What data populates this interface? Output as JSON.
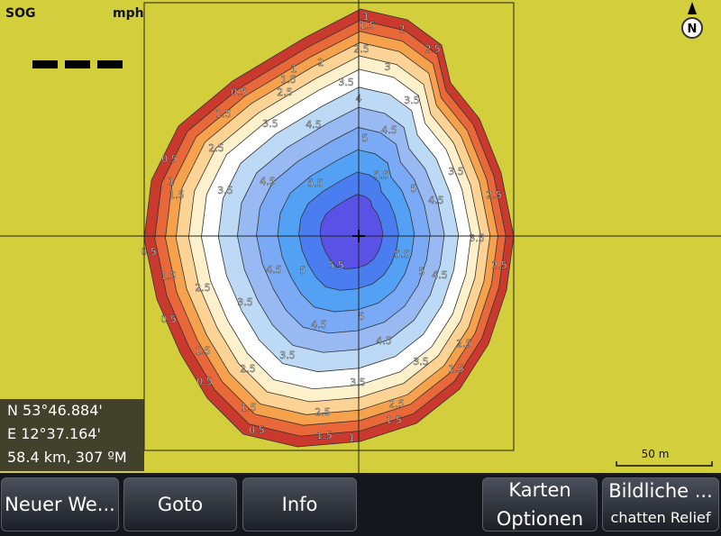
{
  "sog_label": "SOG",
  "sog_unit": "mph",
  "compass": "N",
  "scale": "50 m",
  "position": {
    "lat": "N  53°46.884'",
    "lon": "E  12°37.164'",
    "range": "58.4 km, 307 ºM"
  },
  "buttons": [
    "Neuer We...",
    "Goto",
    "Info",
    [
      "Karten",
      "Optionen"
    ],
    [
      "Bildliche ...",
      "chatten Relief"
    ]
  ],
  "contour_labels": [
    "1",
    "1.5",
    "2",
    "2.5",
    "2.5",
    "3",
    "1",
    "1.5",
    "2",
    "0.5",
    "2.5",
    "3.5",
    "4",
    "3.5",
    "1.5",
    "3.5",
    "4.5",
    "4.5",
    "5",
    "2.5",
    "0.5",
    "1",
    "1.5",
    "3.5",
    "4.5",
    "5.5",
    "5.5",
    "5",
    "4.5",
    "3.5",
    "2.5",
    "0.5",
    "1.5",
    "2.5",
    "3.5",
    "4.5",
    "5",
    "5.5",
    "5.5",
    "5",
    "4.5",
    "3.5",
    "2.5",
    "0.5",
    "1.5",
    "2.5",
    "3.5",
    "4.5",
    "5",
    "4.5",
    "3.5",
    "2.5",
    "1.5",
    "0.5",
    "1.5",
    "2.5",
    "3.5",
    "2.5",
    "1.5",
    "0.5",
    "1.5",
    "1"
  ]
}
